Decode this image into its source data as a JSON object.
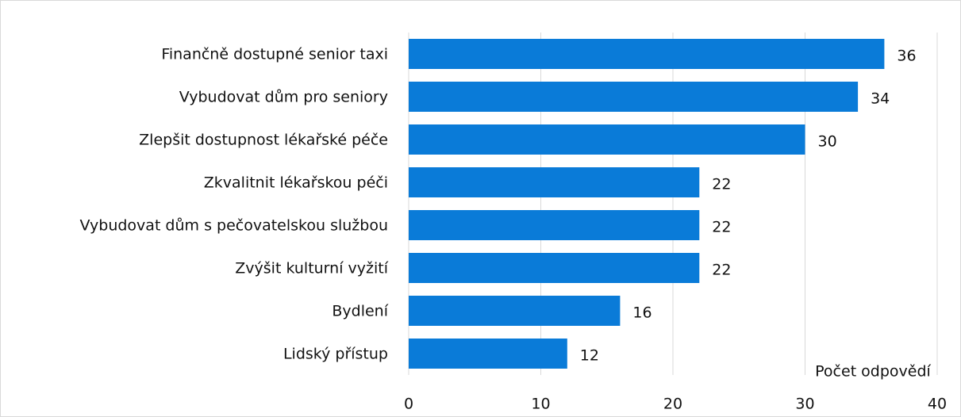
{
  "chart_data": {
    "type": "barh",
    "categories": [
      "Finančně dostupné senior taxi",
      "Vybudovat dům pro seniory",
      "Zlepšit dostupnost lékařské péče",
      "Zkvalitnit lékařskou péči",
      "Vybudovat dům s pečovatelskou službou",
      "Zvýšit kulturní vyžití",
      "Bydlení",
      "Lidský přístup"
    ],
    "values": [
      36,
      34,
      30,
      22,
      22,
      22,
      16,
      12
    ],
    "color": "#0a7bd8",
    "xlabel": "Počet odpovědí",
    "xlim": [
      0,
      40
    ],
    "xticks": [
      0,
      10,
      20,
      30,
      40
    ],
    "grid": true
  }
}
